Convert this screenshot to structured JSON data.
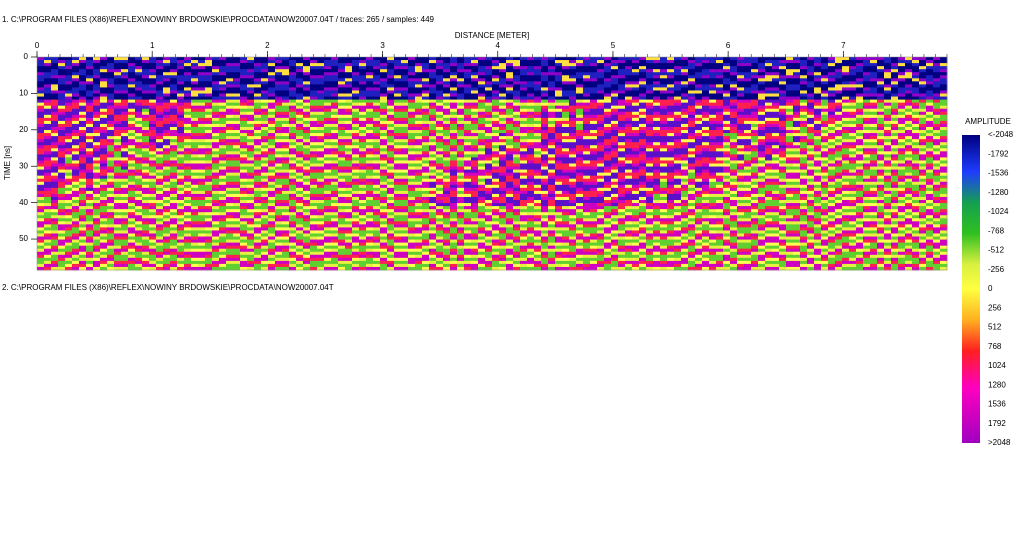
{
  "panels": [
    {
      "title": "1. C:\\PROGRAM FILES (X86)\\REFLEX\\NOWINY BRDOWSKIE\\PROCDATA\\NOW20007.04T / traces: 265 / samples: 449",
      "x_axis": {
        "label": "DISTANCE [METER]",
        "range": [
          0,
          7.9
        ],
        "ticks": [
          0,
          1,
          2,
          3,
          4,
          5,
          6,
          7
        ]
      },
      "y_axis": {
        "label": "TIME [ns]",
        "range": [
          0,
          58.5
        ],
        "ticks": [
          0,
          10,
          20,
          30,
          40,
          50
        ]
      }
    },
    {
      "title": "2. C:\\PROGRAM FILES (X86)\\REFLEX\\NOWINY BRDOWSKIE\\PROCDATA\\NOW20007.04T"
    }
  ],
  "colorbar": {
    "title": "AMPLITUDE",
    "labels": [
      "<-2048",
      "-1792",
      "-1536",
      "-1280",
      "-1024",
      "-768",
      "-512",
      "-256",
      "0",
      "256",
      "512",
      "768",
      "1024",
      "1280",
      "1536",
      "1792",
      ">2048"
    ]
  }
}
